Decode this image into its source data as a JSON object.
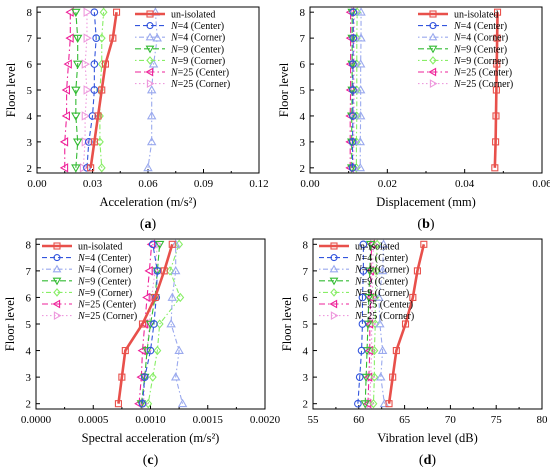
{
  "styles": {
    "un-isolated": {
      "color": "#e8504b",
      "marker": "square",
      "dash": "",
      "width": 2.6
    },
    "N=4 (Center)": {
      "color": "#3355dd",
      "marker": "circle",
      "dash": "5,3",
      "width": 1.1
    },
    "N=4 (Corner)": {
      "color": "#9aa9ee",
      "marker": "triangle",
      "dash": "1.5,2.5,5,2.5",
      "width": 1.1
    },
    "N=9 (Center)": {
      "color": "#33bb33",
      "marker": "triangle-down",
      "dash": "6,3",
      "width": 1.1
    },
    "N=9 (Corner)": {
      "color": "#88ee66",
      "marker": "diamond",
      "dash": "1.5,2.5,5,2.5",
      "width": 1.1
    },
    "N=25 (Center)": {
      "color": "#ee2299",
      "marker": "triangle-left",
      "dash": "6,3,1.5,3",
      "width": 1.1
    },
    "N=25 (Corner)": {
      "color": "#ee99dd",
      "marker": "triangle-right",
      "dash": "1.5,2.5",
      "width": 1.1
    }
  },
  "chart_data": [
    {
      "type": "line",
      "panel_label": "(a)",
      "xlabel": "Acceleration (m/s²)",
      "ylabel": "Floor level",
      "xlim": [
        0.0,
        0.12
      ],
      "ylim": [
        1.8,
        8.2
      ],
      "xticks": [
        "0.00",
        "0.03",
        "0.06",
        "0.09",
        "0.12"
      ],
      "xtick_values": [
        0.0,
        0.03,
        0.06,
        0.09,
        0.12
      ],
      "yticks": [
        "2",
        "3",
        "4",
        "5",
        "6",
        "7",
        "8"
      ],
      "legend_position": "top-right",
      "series": [
        {
          "name": "un-isolated",
          "x": [
            0.029,
            0.031,
            0.033,
            0.035,
            0.037,
            0.041,
            0.043
          ],
          "y": [
            2,
            3,
            4,
            5,
            6,
            7,
            8
          ]
        },
        {
          "name": "N=4 (Center)",
          "x": [
            0.027,
            0.028,
            0.03,
            0.031,
            0.031,
            0.032,
            0.031
          ],
          "y": [
            2,
            3,
            4,
            5,
            6,
            7,
            8
          ]
        },
        {
          "name": "N=4 (Corner)",
          "x": [
            0.06,
            0.062,
            0.062,
            0.062,
            0.063,
            0.065,
            0.064
          ],
          "y": [
            2,
            3,
            4,
            5,
            6,
            7,
            8
          ]
        },
        {
          "name": "N=9 (Center)",
          "x": [
            0.021,
            0.022,
            0.021,
            0.021,
            0.022,
            0.022,
            0.021
          ],
          "y": [
            2,
            3,
            4,
            5,
            6,
            7,
            8
          ]
        },
        {
          "name": "N=9 (Corner)",
          "x": [
            0.035,
            0.034,
            0.034,
            0.034,
            0.035,
            0.035,
            0.036
          ],
          "y": [
            2,
            3,
            4,
            5,
            6,
            7,
            8
          ]
        },
        {
          "name": "N=25 (Center)",
          "x": [
            0.015,
            0.015,
            0.016,
            0.016,
            0.017,
            0.018,
            0.018
          ],
          "y": [
            2,
            3,
            4,
            5,
            6,
            7,
            8
          ]
        },
        {
          "name": "N=25 (Corner)",
          "x": [
            0.025,
            0.026,
            0.026,
            0.027,
            0.026,
            0.027,
            0.027
          ],
          "y": [
            2,
            3,
            4,
            5,
            6,
            7,
            8
          ]
        }
      ]
    },
    {
      "type": "line",
      "panel_label": "(b)",
      "xlabel": "Displacement (mm)",
      "ylabel": "Floor level",
      "xlim": [
        0.0,
        0.06
      ],
      "ylim": [
        1.8,
        8.2
      ],
      "xticks": [
        "0.00",
        "0.02",
        "0.04",
        "0.06"
      ],
      "xtick_values": [
        0.0,
        0.02,
        0.04,
        0.06
      ],
      "yticks": [
        "2",
        "3",
        "4",
        "5",
        "6",
        "7",
        "8"
      ],
      "legend_position": "top-right",
      "series": [
        {
          "name": "un-isolated",
          "x": [
            0.0478,
            0.048,
            0.0481,
            0.0482,
            0.0483,
            0.0484,
            0.0485
          ],
          "y": [
            2,
            3,
            4,
            5,
            6,
            7,
            8
          ]
        },
        {
          "name": "N=4 (Center)",
          "x": [
            0.011,
            0.011,
            0.0111,
            0.0111,
            0.0111,
            0.0112,
            0.0112
          ],
          "y": [
            2,
            3,
            4,
            5,
            6,
            7,
            8
          ]
        },
        {
          "name": "N=4 (Corner)",
          "x": [
            0.013,
            0.013,
            0.0131,
            0.0131,
            0.0131,
            0.0132,
            0.0132
          ],
          "y": [
            2,
            3,
            4,
            5,
            6,
            7,
            8
          ]
        },
        {
          "name": "N=9 (Center)",
          "x": [
            0.0108,
            0.0108,
            0.0108,
            0.0109,
            0.0109,
            0.0109,
            0.0109
          ],
          "y": [
            2,
            3,
            4,
            5,
            6,
            7,
            8
          ]
        },
        {
          "name": "N=9 (Corner)",
          "x": [
            0.012,
            0.012,
            0.0121,
            0.0121,
            0.0121,
            0.0121,
            0.0122
          ],
          "y": [
            2,
            3,
            4,
            5,
            6,
            7,
            8
          ]
        },
        {
          "name": "N=25 (Center)",
          "x": [
            0.0104,
            0.0104,
            0.0104,
            0.0105,
            0.0105,
            0.0105,
            0.0105
          ],
          "y": [
            2,
            3,
            4,
            5,
            6,
            7,
            8
          ]
        },
        {
          "name": "N=25 (Corner)",
          "x": [
            0.0113,
            0.0113,
            0.0114,
            0.0114,
            0.0114,
            0.0114,
            0.0115
          ],
          "y": [
            2,
            3,
            4,
            5,
            6,
            7,
            8
          ]
        }
      ]
    },
    {
      "type": "line",
      "panel_label": "(c)",
      "xlabel": "Spectral acceleration (m/s²)",
      "ylabel": "Floor level",
      "xlim": [
        0.0,
        0.002
      ],
      "ylim": [
        1.8,
        8.2
      ],
      "xticks": [
        "0.0000",
        "0.0005",
        "0.0010",
        "0.0015",
        "0.0020"
      ],
      "xtick_values": [
        0.0,
        0.0005,
        0.001,
        0.0015,
        0.002
      ],
      "yticks": [
        "2",
        "3",
        "4",
        "5",
        "6",
        "7",
        "8"
      ],
      "legend_position": "top-left",
      "series": [
        {
          "name": "un-isolated",
          "x": [
            0.00072,
            0.00075,
            0.00078,
            0.00093,
            0.00104,
            0.00112,
            0.00119
          ],
          "y": [
            2,
            3,
            4,
            5,
            6,
            7,
            8
          ]
        },
        {
          "name": "N=4 (Center)",
          "x": [
            0.00093,
            0.00095,
            0.001,
            0.00103,
            0.00105,
            0.00106,
            0.00102
          ],
          "y": [
            2,
            3,
            4,
            5,
            6,
            7,
            8
          ]
        },
        {
          "name": "N=4 (Corner)",
          "x": [
            0.00128,
            0.00122,
            0.00125,
            0.00118,
            0.00119,
            0.00122,
            0.00122
          ],
          "y": [
            2,
            3,
            4,
            5,
            6,
            7,
            8
          ]
        },
        {
          "name": "N=9 (Center)",
          "x": [
            0.00092,
            0.00095,
            0.00097,
            0.001,
            0.00104,
            0.00106,
            0.00108
          ],
          "y": [
            2,
            3,
            4,
            5,
            6,
            7,
            8
          ]
        },
        {
          "name": "N=9 (Corner)",
          "x": [
            0.00098,
            0.00102,
            0.00106,
            0.00108,
            0.00126,
            0.00117,
            0.00125
          ],
          "y": [
            2,
            3,
            4,
            5,
            6,
            7,
            8
          ]
        },
        {
          "name": "N=25 (Center)",
          "x": [
            0.0009,
            0.00092,
            0.00093,
            0.00095,
            0.00097,
            0.00099,
            0.00101
          ],
          "y": [
            2,
            3,
            4,
            5,
            6,
            7,
            8
          ]
        },
        {
          "name": "N=25 (Corner)",
          "x": [
            0.00094,
            0.00095,
            0.00097,
            0.00099,
            0.00101,
            0.00104,
            0.00106
          ],
          "y": [
            2,
            3,
            4,
            5,
            6,
            7,
            8
          ]
        }
      ]
    },
    {
      "type": "line",
      "panel_label": "(d)",
      "xlabel": "Vibration level (dB)",
      "ylabel": "Floor level",
      "xlim": [
        55,
        80
      ],
      "ylim": [
        1.8,
        8.2
      ],
      "xticks": [
        "55",
        "60",
        "65",
        "70",
        "75",
        "80"
      ],
      "xtick_values": [
        55,
        60,
        65,
        70,
        75,
        80
      ],
      "yticks": [
        "2",
        "3",
        "4",
        "5",
        "6",
        "7",
        "8"
      ],
      "legend_position": "top-left",
      "series": [
        {
          "name": "un-isolated",
          "x": [
            63.3,
            63.7,
            64.1,
            65.1,
            65.9,
            66.4,
            67.1
          ],
          "y": [
            2,
            3,
            4,
            5,
            6,
            7,
            8
          ]
        },
        {
          "name": "N=4 (Center)",
          "x": [
            59.9,
            60.1,
            60.3,
            60.4,
            60.4,
            60.5,
            60.5
          ],
          "y": [
            2,
            3,
            4,
            5,
            6,
            7,
            8
          ]
        },
        {
          "name": "N=4 (Corner)",
          "x": [
            62.8,
            62.4,
            62.6,
            62.3,
            62.2,
            62.6,
            62.7
          ],
          "y": [
            2,
            3,
            4,
            5,
            6,
            7,
            8
          ]
        },
        {
          "name": "N=9 (Center)",
          "x": [
            60.7,
            60.8,
            60.9,
            61.0,
            61.1,
            61.2,
            61.3
          ],
          "y": [
            2,
            3,
            4,
            5,
            6,
            7,
            8
          ]
        },
        {
          "name": "N=9 (Corner)",
          "x": [
            61.6,
            61.7,
            61.7,
            61.8,
            61.8,
            61.9,
            62.0
          ],
          "y": [
            2,
            3,
            4,
            5,
            6,
            7,
            8
          ]
        },
        {
          "name": "N=25 (Center)",
          "x": [
            61.0,
            61.1,
            61.2,
            61.2,
            61.3,
            61.3,
            61.4
          ],
          "y": [
            2,
            3,
            4,
            5,
            6,
            7,
            8
          ]
        },
        {
          "name": "N=25 (Corner)",
          "x": [
            61.2,
            61.3,
            61.4,
            61.4,
            61.5,
            61.5,
            61.6
          ],
          "y": [
            2,
            3,
            4,
            5,
            6,
            7,
            8
          ]
        }
      ]
    }
  ]
}
